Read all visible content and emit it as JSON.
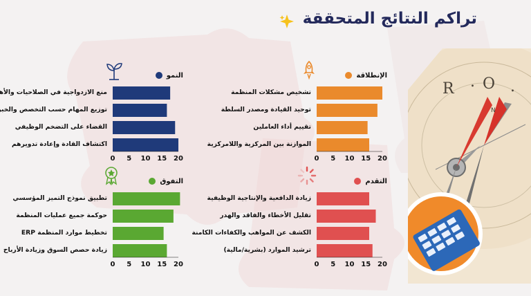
{
  "title": "تراكم النتائج المتحققة",
  "colors": {
    "title": "#23295b",
    "launch": "#ea8a2c",
    "growth": "#1f3a7a",
    "progress": "#e05050",
    "excellence": "#5aa832",
    "axis": "#111111"
  },
  "icons": {
    "sparkle": "sparkle-icon",
    "launch": "rocket-icon",
    "growth": "plant-icon",
    "progress": "loading-spinner-icon",
    "excellence": "medal-icon"
  },
  "chart_data": [
    {
      "type": "bar",
      "orientation": "horizontal",
      "title": "الإنطلاقة",
      "categories": [
        "تشخيص مشكلات المنظمة",
        "توحيد القيادة ومصدر السلطة",
        "تقييم أداء العاملين",
        "الموازنة بين المركزية واللامركزية"
      ],
      "values": [
        20,
        18.5,
        15.5,
        16
      ],
      "xlim": [
        0,
        20
      ],
      "ticks": [
        "0",
        "5",
        "10",
        "15",
        "20"
      ],
      "grid": false
    },
    {
      "type": "bar",
      "orientation": "horizontal",
      "title": "النمو",
      "categories": [
        "منع الازدواجية في الصلاحيات والأهداف",
        "توزيع المهام حسب التخصص والخبرة",
        "القضاء على التضخم الوظيفي",
        "اكتشاف القادة وإعادة تدويرهم"
      ],
      "values": [
        17.5,
        16.5,
        19,
        20
      ],
      "xlim": [
        0,
        20
      ],
      "ticks": [
        "0",
        "5",
        "10",
        "15",
        "20"
      ],
      "grid": false
    },
    {
      "type": "bar",
      "orientation": "horizontal",
      "title": "التقدم",
      "categories": [
        "زيادة الدافعية والإنتاجية الوظيفية",
        "تقليل الأخطاء والفاقد والهدر",
        "الكشف عن المواهب والكفاءات الكامنة",
        "ترشيد الموارد (بشرية/مالية)"
      ],
      "values": [
        16,
        18,
        16,
        17
      ],
      "xlim": [
        0,
        20
      ],
      "ticks": [
        "0",
        "5",
        "10",
        "15",
        "20"
      ],
      "grid": false
    },
    {
      "type": "bar",
      "orientation": "horizontal",
      "title": "التفوق",
      "categories": [
        "تطبيق نموذج التميز المؤسسي",
        "حوكمة جميع عمليات المنظمة",
        "تخطيط موارد المنظمة ERP",
        "زيادة حصص السوق وزيادة الأرباح"
      ],
      "values": [
        20.5,
        18.5,
        15.5,
        16.5
      ],
      "xlim": [
        0,
        20
      ],
      "ticks": [
        "0",
        "5",
        "10",
        "15",
        "20"
      ],
      "grid": false
    }
  ]
}
